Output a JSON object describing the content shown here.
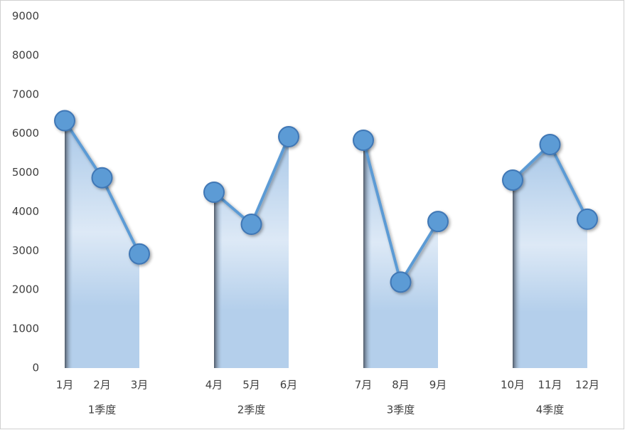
{
  "chart_data": {
    "type": "line",
    "categories": [
      "1月",
      "2月",
      "3月",
      null,
      "4月",
      "5月",
      "6月",
      null,
      "7月",
      "8月",
      "9月",
      null,
      "10月",
      "11月",
      "12月"
    ],
    "values": [
      6330,
      4870,
      2920,
      null,
      4500,
      3680,
      5920,
      null,
      5830,
      2200,
      3750,
      null,
      4810,
      5720,
      3810
    ],
    "groups": [
      "1季度",
      "2季度",
      "3季度",
      "4季度"
    ],
    "color": "#5b9bd5",
    "ylim": [
      0,
      9000
    ],
    "yticks": [
      0,
      1000,
      2000,
      3000,
      4000,
      5000,
      6000,
      7000,
      8000,
      9000
    ],
    "grid": false
  }
}
